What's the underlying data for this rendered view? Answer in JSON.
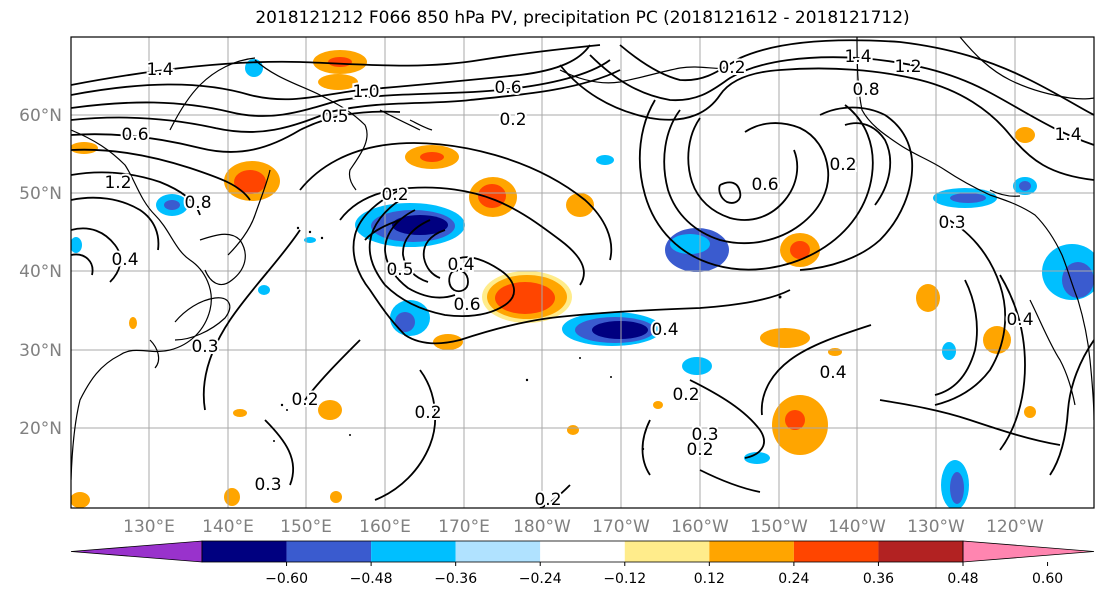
{
  "title": "2018121212 F066 850 hPa PV, precipitation PC (2018121612 - 2018121712)",
  "latitude_labels": [
    "60°N",
    "50°N",
    "40°N",
    "30°N",
    "20°N"
  ],
  "longitude_labels": [
    "130°E",
    "140°E",
    "150°E",
    "160°E",
    "170°E",
    "180°W",
    "170°W",
    "160°W",
    "150°W",
    "140°W",
    "130°W",
    "120°W"
  ],
  "colorbar": {
    "labels": [
      "−0.60",
      "−0.48",
      "−0.36",
      "−0.24",
      "−0.12",
      "0.12",
      "0.24",
      "0.36",
      "0.48",
      "0.60"
    ],
    "colors": [
      "#9932cc",
      "#000080",
      "#3a5bcf",
      "#00bfff",
      "#b0e2ff",
      "#ffffff",
      "#ffec8b",
      "#ffa500",
      "#ff4500",
      "#b22222",
      "#ff85b0"
    ]
  },
  "contour_labels": [
    "1.4",
    "0.6",
    "0.8",
    "1.2",
    "0.4",
    "0.3",
    "0.2",
    "0.5",
    "1.0",
    "0.6",
    "0.2",
    "0.4",
    "0.6",
    "0.2",
    "0.4",
    "0.2",
    "0.3",
    "0.2",
    "0.4",
    "0.2",
    "0.3",
    "0.2",
    "1.4",
    "1.2",
    "0.8",
    "0.6",
    "0.2",
    "1.4",
    "0.4",
    "0.3",
    "0.5",
    "0.2"
  ]
}
